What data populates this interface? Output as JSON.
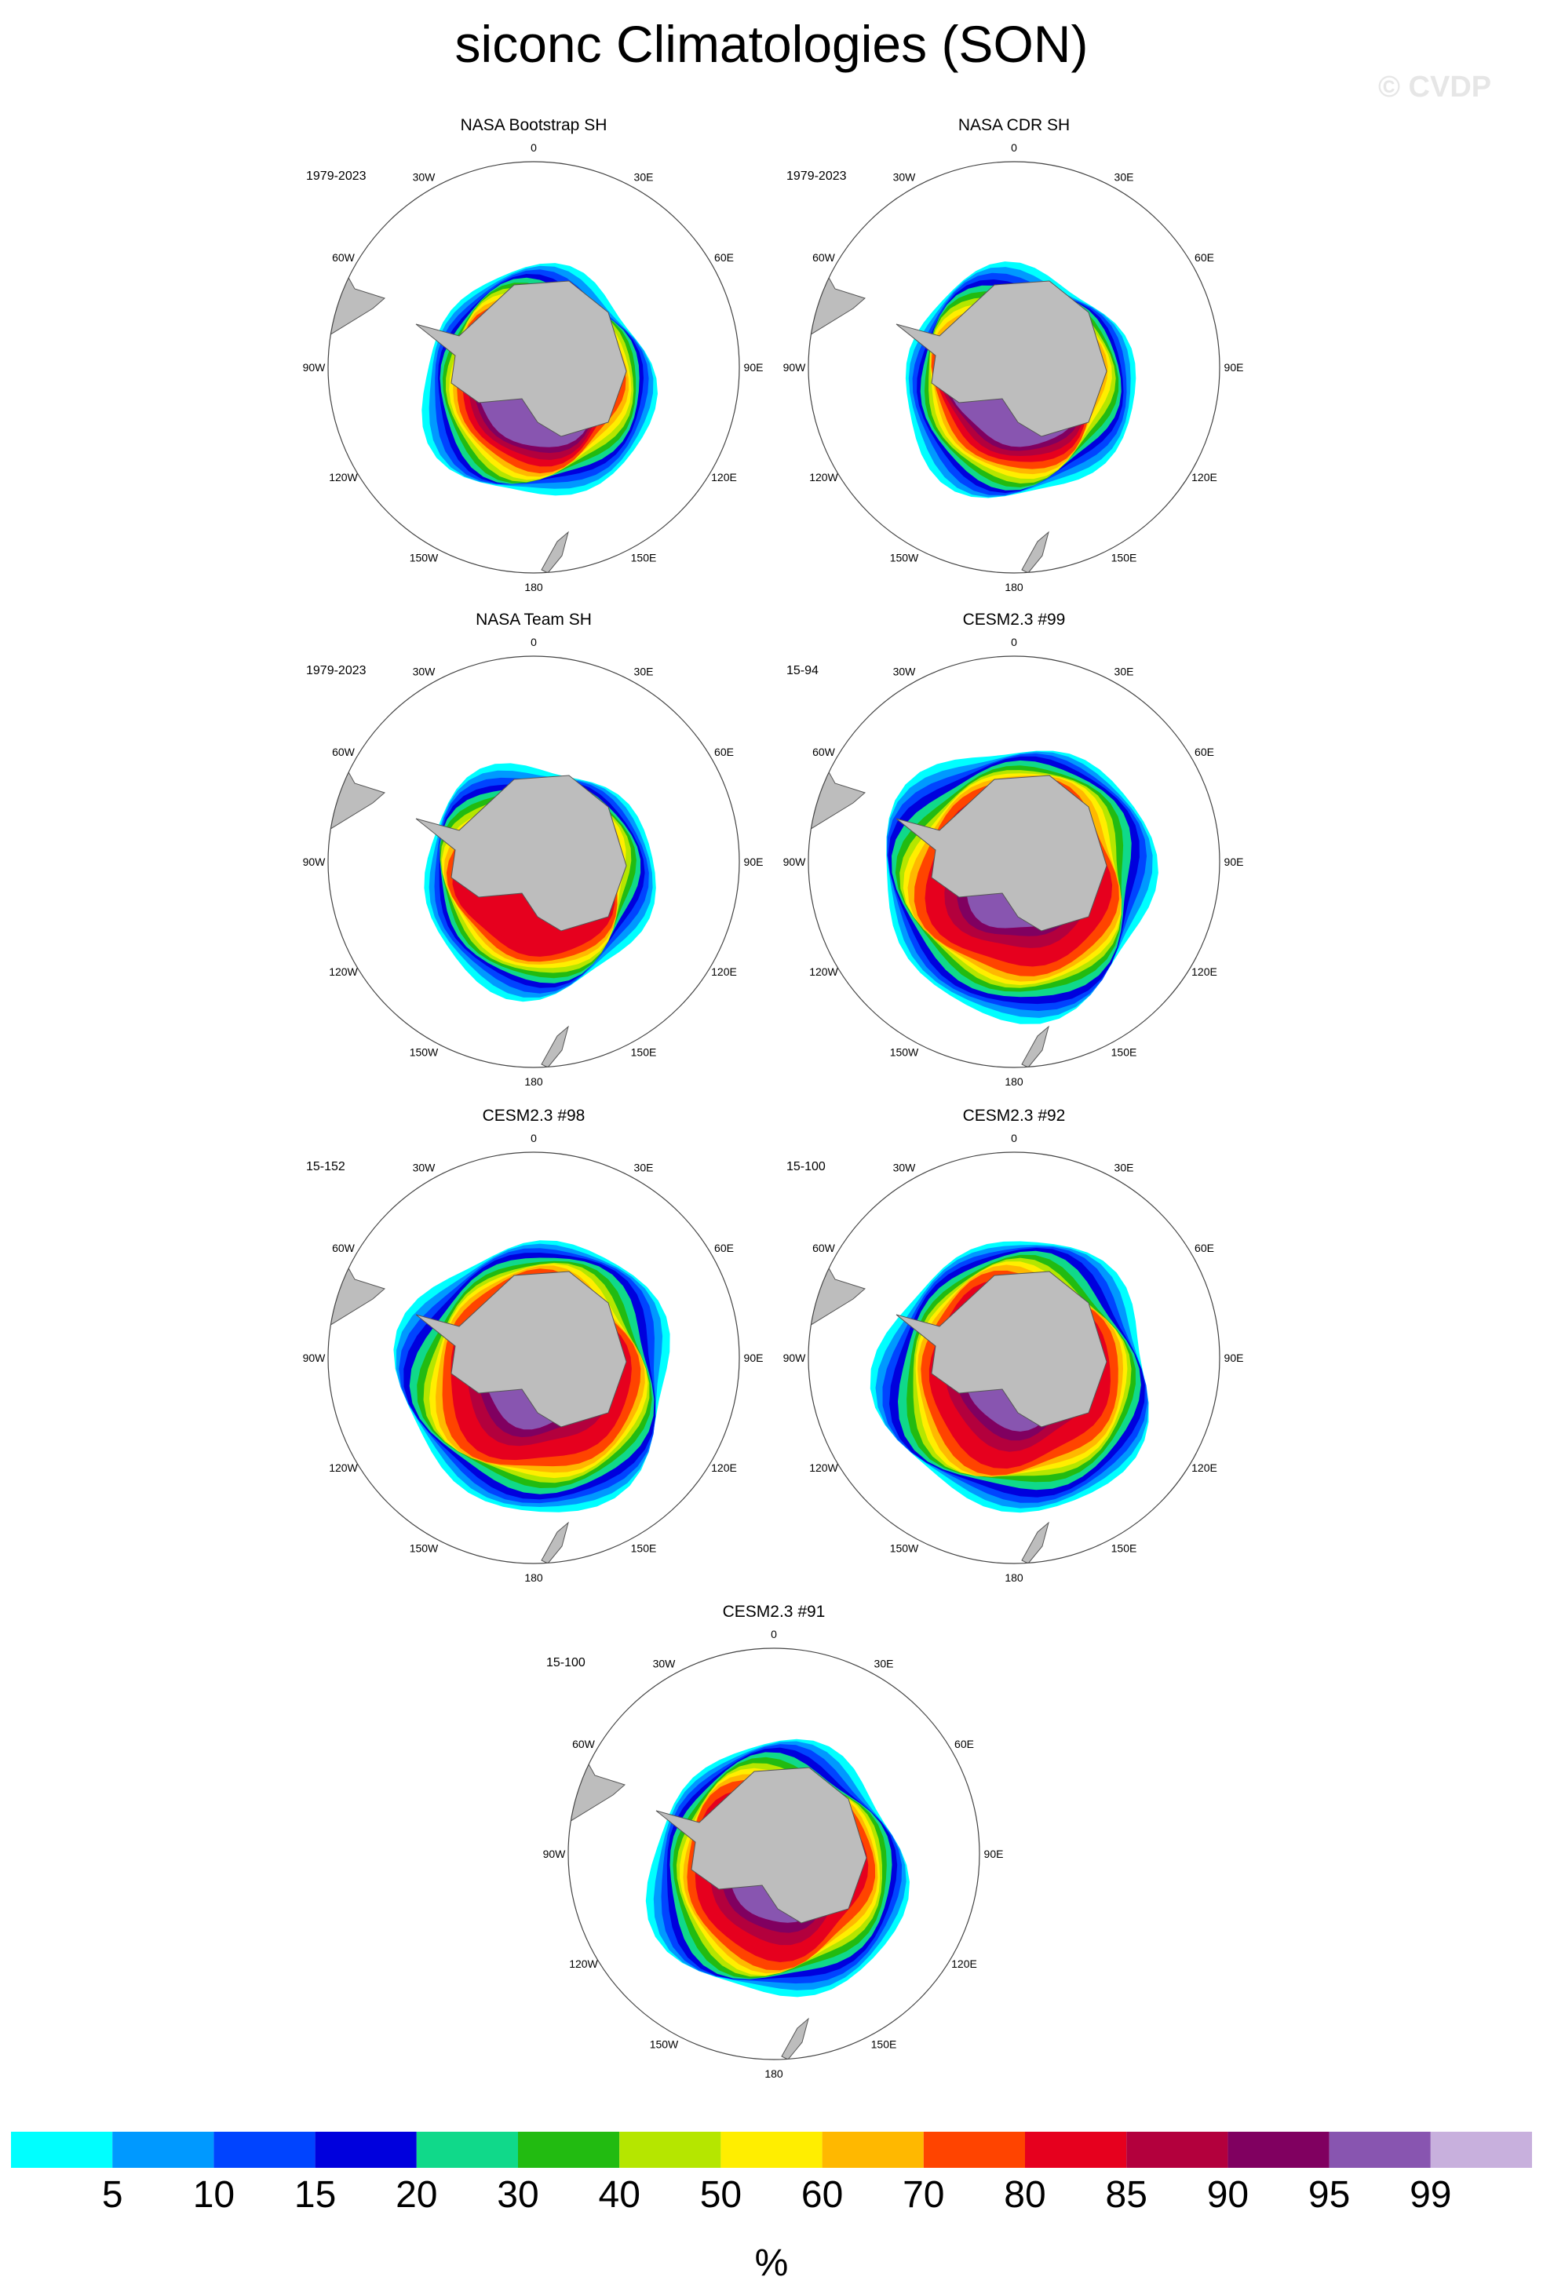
{
  "title": "siconc Climatologies (SON)",
  "watermark": "© CVDP",
  "map_labels": {
    "top": "0",
    "bottom": "180",
    "e30": "30E",
    "e60": "60E",
    "e90": "90E",
    "e120": "120E",
    "e150": "150E",
    "w30": "30W",
    "w60": "60W",
    "w90": "90W",
    "w120": "120W",
    "w150": "150W"
  },
  "panels": [
    {
      "title": "NASA Bootstrap SH",
      "years": "1979-2023",
      "kind": "obs_boot"
    },
    {
      "title": "NASA CDR SH",
      "years": "1979-2023",
      "kind": "obs_cdr"
    },
    {
      "title": "NASA Team SH",
      "years": "1979-2023",
      "kind": "obs_team"
    },
    {
      "title": "CESM2.3 #99",
      "years": "15-94",
      "kind": "model"
    },
    {
      "title": "CESM2.3 #98",
      "years": "15-152",
      "kind": "model"
    },
    {
      "title": "CESM2.3 #92",
      "years": "15-100",
      "kind": "model"
    },
    {
      "title": "CESM2.3 #91",
      "years": "15-100",
      "kind": "model_small"
    }
  ],
  "colorbar": {
    "colors": [
      "#00ffff",
      "#0099ff",
      "#0044ff",
      "#0000dd",
      "#10d98a",
      "#22bb11",
      "#b5e600",
      "#ffee00",
      "#ffb800",
      "#ff4400",
      "#e6001e",
      "#b3003d",
      "#800060",
      "#8855b0",
      "#c8b0dd"
    ],
    "labels": [
      "5",
      "10",
      "15",
      "20",
      "30",
      "40",
      "50",
      "60",
      "70",
      "80",
      "85",
      "90",
      "95",
      "99"
    ],
    "units": "%"
  },
  "land_color": "#bdbdbd"
}
